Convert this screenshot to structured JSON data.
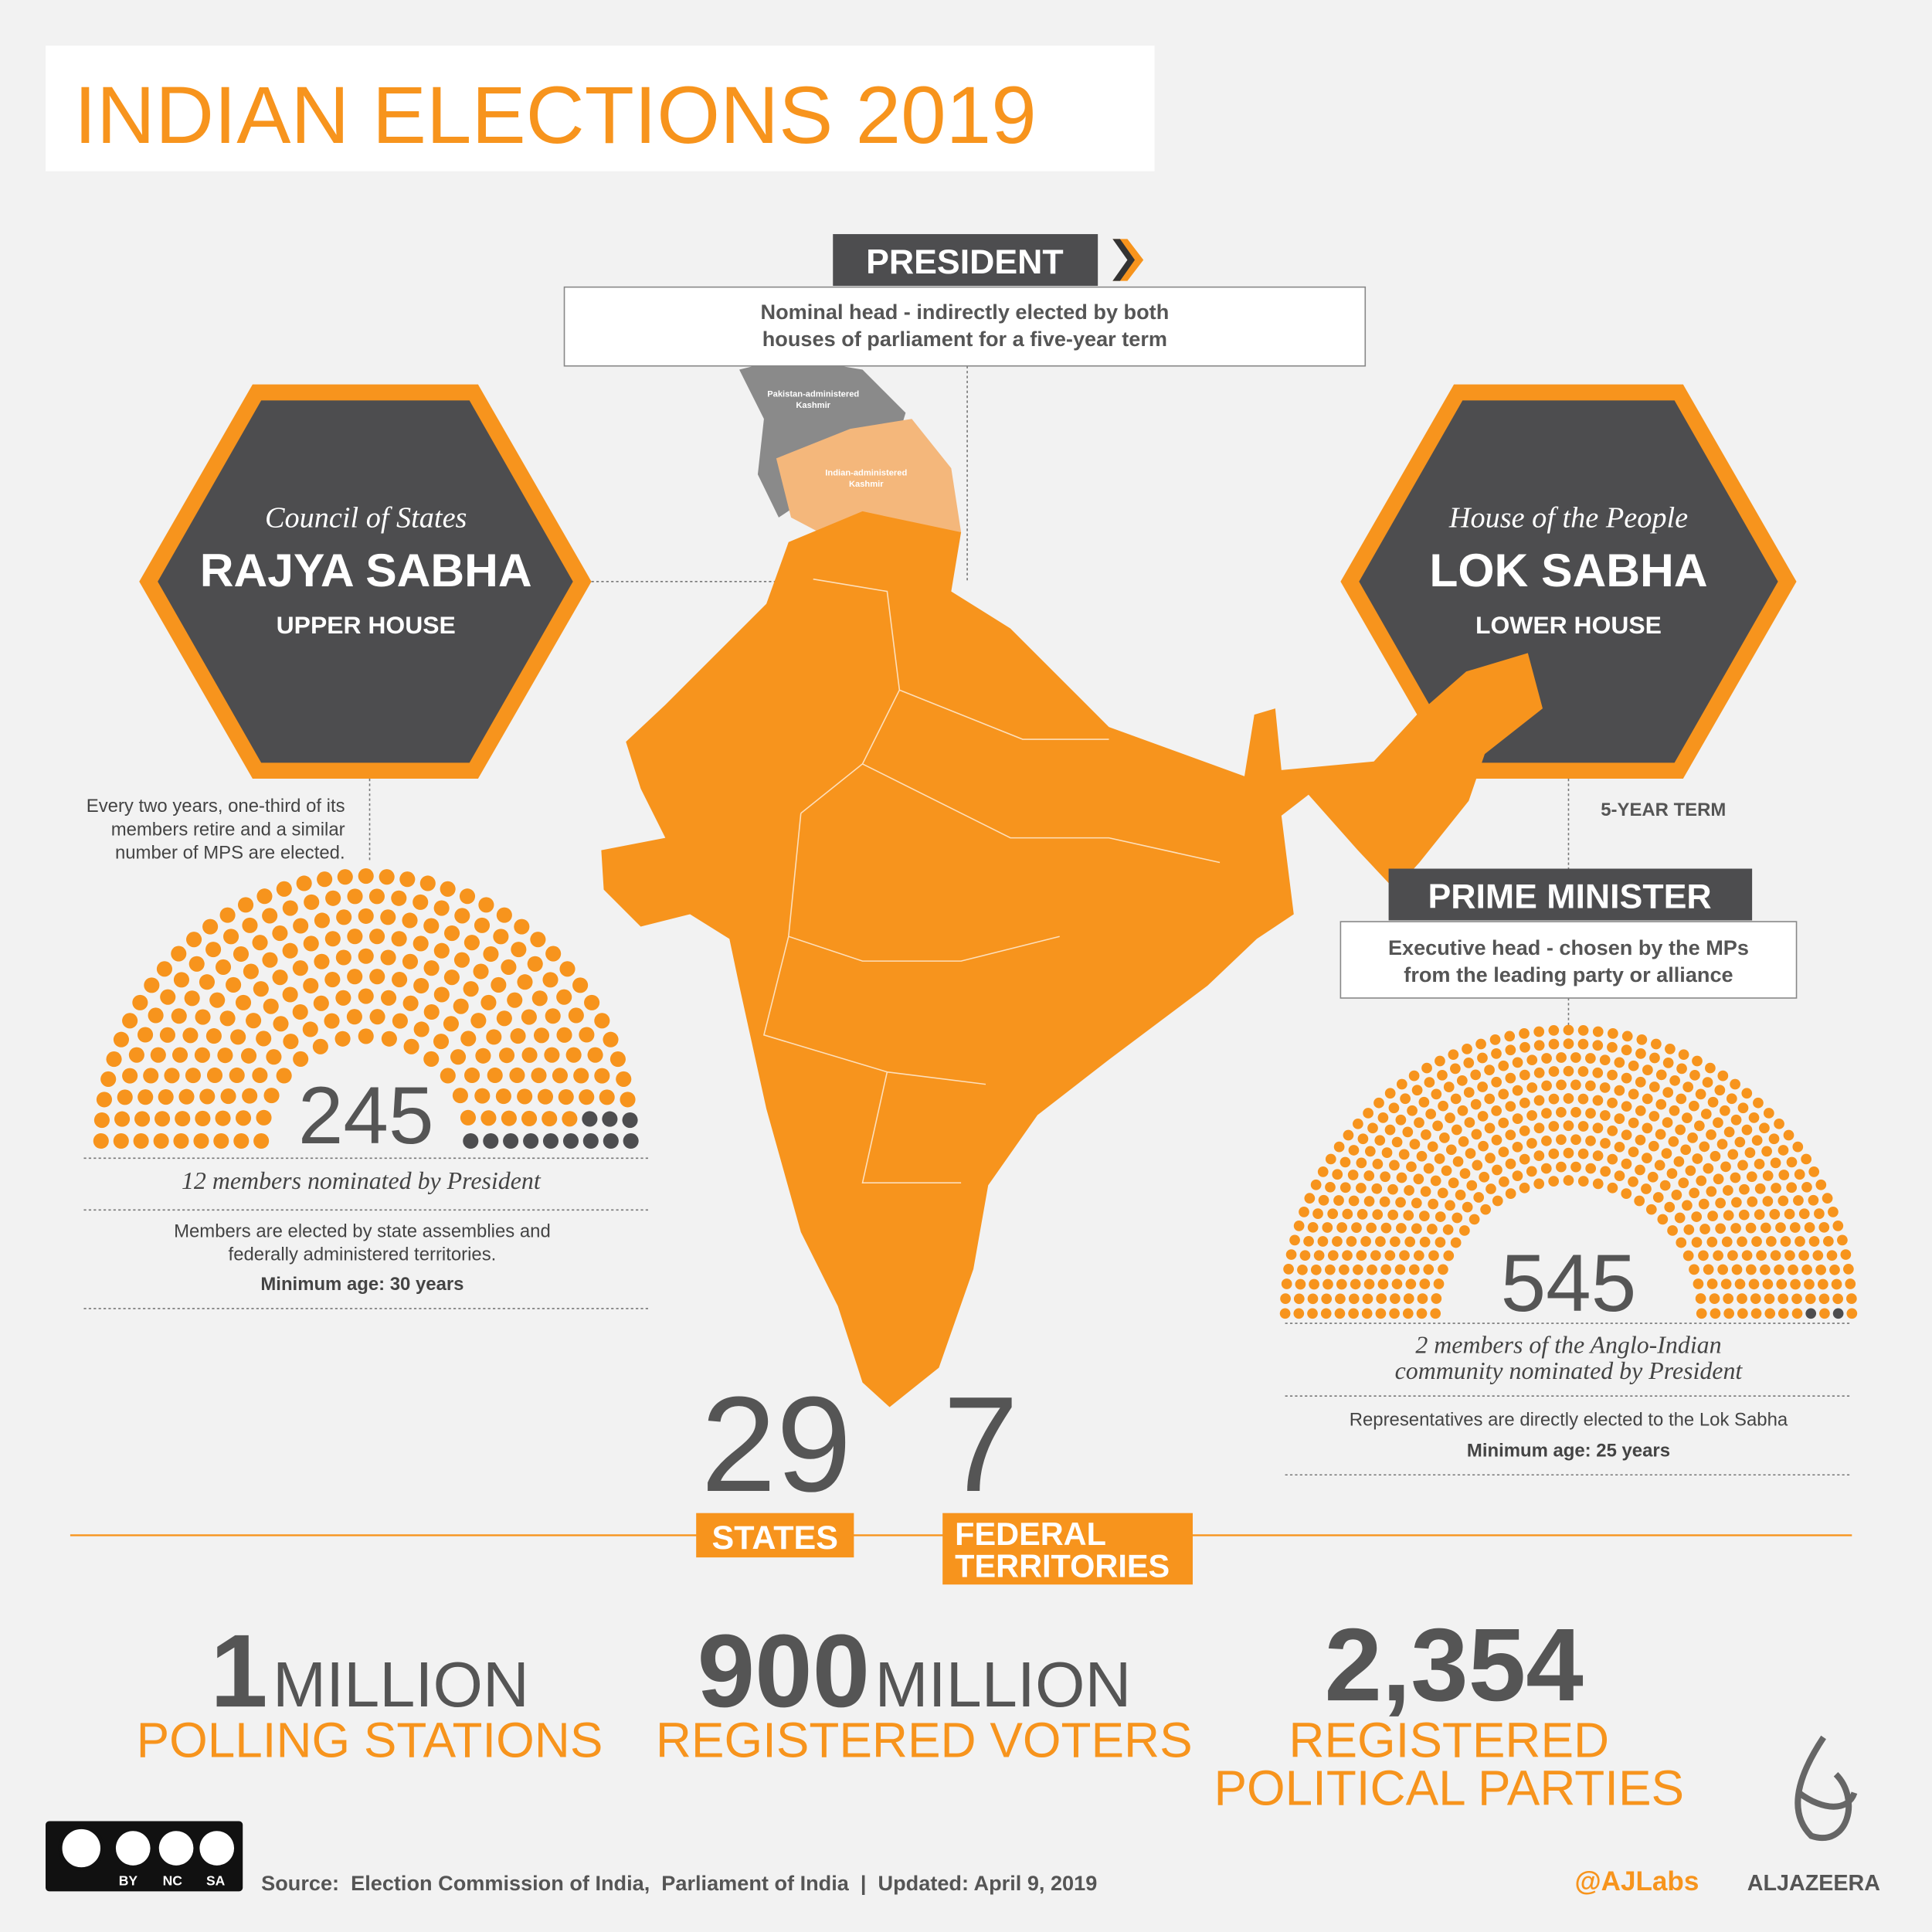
{
  "header": {
    "title": "INDIAN ELECTIONS 2019"
  },
  "president": {
    "title": "PRESIDENT",
    "description": [
      "Nominal head - indirectly elected by both",
      "houses of parliament for a five-year term"
    ]
  },
  "map": {
    "labels": [
      [
        "Pakistan-administered",
        "Kashmir"
      ],
      [
        "Indian-administered",
        "Kashmir"
      ]
    ]
  },
  "rajya_sabha": {
    "subtitle": "Council of States",
    "title": "RAJYA SABHA",
    "house": "UPPER HOUSE",
    "note": [
      "Every two years, one-third of its",
      "members retire and a similar",
      "number of MPS are elected."
    ],
    "seats": 245,
    "nominated": 12,
    "nominated_text": [
      "members nominated by President"
    ],
    "details": [
      "Members are elected by state assemblies and",
      "federally administered territories.",
      "Minimum age: 30 years"
    ]
  },
  "lok_sabha": {
    "subtitle": "House of the People",
    "title": "LOK SABHA",
    "house": "LOWER HOUSE",
    "term": "5-YEAR  TERM",
    "seats": 545,
    "nominated": 2,
    "nominated_text": [
      "members of the  Anglo-Indian",
      "community nominated by President"
    ],
    "details": [
      "Representatives are directly elected to the Lok Sabha",
      "Minimum age: 25 years"
    ]
  },
  "prime_minister": {
    "title": "PRIME MINISTER",
    "description": [
      "Executive head - chosen by the MPs",
      "from the leading party or alliance"
    ]
  },
  "counts": [
    {
      "number": "29",
      "label": [
        "STATES"
      ]
    },
    {
      "number": "7",
      "label": [
        "FEDERAL",
        "TERRITORIES"
      ]
    }
  ],
  "stats": [
    {
      "number": "1",
      "unit": "MILLION",
      "label": [
        "POLLING STATIONS"
      ]
    },
    {
      "number": "900",
      "unit": "MILLION",
      "label": [
        "REGISTERED VOTERS"
      ]
    },
    {
      "number": "2,354",
      "label": [
        "REGISTERED",
        "POLITICAL PARTIES"
      ]
    }
  ],
  "footer": {
    "license": [
      "BY",
      "NC",
      "SA"
    ],
    "source": "Source:  Election Commission of India,  Parliament of India  |  Updated: April 9, 2019",
    "handle": "@AJLabs",
    "brand": "ALJAZEERA"
  }
}
